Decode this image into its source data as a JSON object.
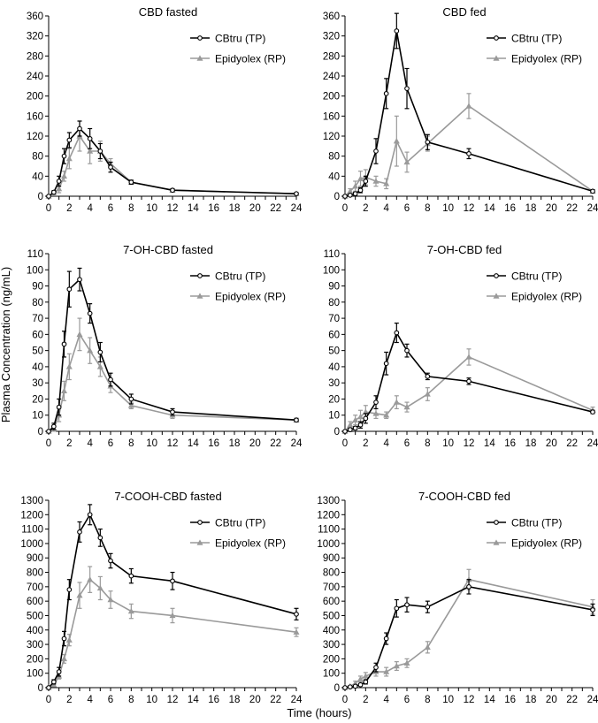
{
  "figure": {
    "ylabel": "Plasma Concentration (ng/mL)",
    "xlabel": "Time (hours)"
  },
  "colors": {
    "tp": "#000000",
    "rp": "#9a9a9a"
  },
  "chart_data": [
    {
      "type": "line",
      "title": "CBD fasted",
      "xlim": [
        0,
        24
      ],
      "ylim": [
        0,
        360
      ],
      "xticks": [
        0,
        1,
        2,
        3,
        4,
        5,
        6,
        7,
        8,
        9,
        10,
        11,
        12,
        13,
        14,
        15,
        16,
        17,
        18,
        19,
        20,
        21,
        22,
        23,
        24
      ],
      "yticks": [
        0,
        40,
        80,
        120,
        160,
        200,
        240,
        280,
        320,
        360
      ],
      "legend_position": "top-right",
      "series": [
        {
          "name": "CBtru (TP)",
          "color": "#000000",
          "marker": "circle",
          "x": [
            0,
            0.5,
            1,
            1.5,
            2,
            3,
            4,
            5,
            6,
            8,
            12,
            24
          ],
          "y": [
            0,
            8,
            30,
            80,
            112,
            135,
            115,
            90,
            58,
            28,
            12,
            5
          ],
          "err": [
            0,
            3,
            10,
            15,
            15,
            15,
            20,
            15,
            10,
            4,
            3,
            2
          ]
        },
        {
          "name": "Epidyolex (RP)",
          "color": "#9a9a9a",
          "marker": "triangle",
          "x": [
            0,
            0.5,
            1,
            1.5,
            2,
            3,
            4,
            5,
            6,
            8,
            12,
            24
          ],
          "y": [
            0,
            5,
            15,
            40,
            75,
            120,
            90,
            90,
            65,
            28,
            12,
            5
          ],
          "err": [
            0,
            3,
            8,
            10,
            20,
            30,
            25,
            20,
            10,
            4,
            3,
            2
          ]
        }
      ]
    },
    {
      "type": "line",
      "title": "CBD fed",
      "xlim": [
        0,
        24
      ],
      "ylim": [
        0,
        360
      ],
      "xticks": [
        0,
        1,
        2,
        3,
        4,
        5,
        6,
        7,
        8,
        9,
        10,
        11,
        12,
        13,
        14,
        15,
        16,
        17,
        18,
        19,
        20,
        21,
        22,
        23,
        24
      ],
      "yticks": [
        0,
        40,
        80,
        120,
        160,
        200,
        240,
        280,
        320,
        360
      ],
      "legend_position": "top-right",
      "series": [
        {
          "name": "CBtru (TP)",
          "color": "#000000",
          "marker": "circle",
          "x": [
            0,
            0.5,
            1,
            1.5,
            2,
            3,
            4,
            5,
            6,
            8,
            12,
            24
          ],
          "y": [
            0,
            2,
            5,
            12,
            30,
            90,
            205,
            330,
            215,
            108,
            85,
            10
          ],
          "err": [
            0,
            2,
            3,
            5,
            10,
            25,
            30,
            35,
            40,
            15,
            10,
            3
          ]
        },
        {
          "name": "Epidyolex (RP)",
          "color": "#9a9a9a",
          "marker": "triangle",
          "x": [
            0,
            0.5,
            1,
            1.5,
            2,
            3,
            4,
            5,
            6,
            8,
            12,
            24
          ],
          "y": [
            0,
            10,
            20,
            35,
            38,
            30,
            25,
            110,
            68,
            105,
            180,
            10
          ],
          "err": [
            0,
            5,
            10,
            15,
            15,
            10,
            10,
            50,
            20,
            15,
            25,
            3
          ]
        }
      ]
    },
    {
      "type": "line",
      "title": "7-OH-CBD fasted",
      "xlim": [
        0,
        24
      ],
      "ylim": [
        0,
        110
      ],
      "xticks": [
        0,
        1,
        2,
        3,
        4,
        5,
        6,
        7,
        8,
        9,
        10,
        11,
        12,
        13,
        14,
        15,
        16,
        17,
        18,
        19,
        20,
        21,
        22,
        23,
        24
      ],
      "yticks": [
        0,
        10,
        20,
        30,
        40,
        50,
        60,
        70,
        80,
        90,
        100,
        110
      ],
      "legend_position": "top-right",
      "series": [
        {
          "name": "CBtru (TP)",
          "color": "#000000",
          "marker": "circle",
          "x": [
            0,
            0.5,
            1,
            1.5,
            2,
            3,
            4,
            5,
            6,
            8,
            12,
            24
          ],
          "y": [
            0,
            3,
            15,
            54,
            88,
            94,
            73,
            49,
            32,
            20,
            12,
            7
          ],
          "err": [
            0,
            2,
            5,
            8,
            11,
            7,
            6,
            6,
            4,
            3,
            2,
            1
          ]
        },
        {
          "name": "Epidyolex (RP)",
          "color": "#9a9a9a",
          "marker": "triangle",
          "x": [
            0,
            0.5,
            1,
            1.5,
            2,
            3,
            4,
            5,
            6,
            8,
            12,
            24
          ],
          "y": [
            0,
            2,
            10,
            25,
            40,
            60,
            50,
            40,
            28,
            16,
            10,
            7
          ],
          "err": [
            0,
            2,
            4,
            6,
            8,
            10,
            8,
            6,
            4,
            2,
            2,
            1
          ]
        }
      ]
    },
    {
      "type": "line",
      "title": "7-OH-CBD fed",
      "xlim": [
        0,
        24
      ],
      "ylim": [
        0,
        110
      ],
      "xticks": [
        0,
        1,
        2,
        3,
        4,
        5,
        6,
        7,
        8,
        9,
        10,
        11,
        12,
        13,
        14,
        15,
        16,
        17,
        18,
        19,
        20,
        21,
        22,
        23,
        24
      ],
      "yticks": [
        0,
        10,
        20,
        30,
        40,
        50,
        60,
        70,
        80,
        90,
        100,
        110
      ],
      "legend_position": "top-right",
      "series": [
        {
          "name": "CBtru (TP)",
          "color": "#000000",
          "marker": "circle",
          "x": [
            0,
            0.5,
            1,
            1.5,
            2,
            3,
            4,
            5,
            6,
            8,
            12,
            24
          ],
          "y": [
            0,
            1,
            2,
            4,
            8,
            18,
            42,
            61,
            50,
            34,
            31,
            12
          ],
          "err": [
            0,
            1,
            1,
            2,
            3,
            4,
            7,
            6,
            4,
            2,
            2,
            1
          ]
        },
        {
          "name": "Epidyolex (RP)",
          "color": "#9a9a9a",
          "marker": "triangle",
          "x": [
            0,
            0.5,
            1,
            1.5,
            2,
            3,
            4,
            5,
            6,
            8,
            12,
            24
          ],
          "y": [
            0,
            4,
            7,
            9,
            12,
            11,
            10,
            18,
            15,
            23,
            46,
            13
          ],
          "err": [
            0,
            2,
            3,
            4,
            4,
            3,
            2,
            4,
            3,
            4,
            5,
            2
          ]
        }
      ]
    },
    {
      "type": "line",
      "title": "7-COOH-CBD fasted",
      "xlim": [
        0,
        24
      ],
      "ylim": [
        0,
        1300
      ],
      "xticks": [
        0,
        1,
        2,
        3,
        4,
        5,
        6,
        7,
        8,
        9,
        10,
        11,
        12,
        13,
        14,
        15,
        16,
        17,
        18,
        19,
        20,
        21,
        22,
        23,
        24
      ],
      "yticks": [
        0,
        100,
        200,
        300,
        400,
        500,
        600,
        700,
        800,
        900,
        1000,
        1100,
        1200,
        1300
      ],
      "legend_position": "top-right",
      "series": [
        {
          "name": "CBtru (TP)",
          "color": "#000000",
          "marker": "circle",
          "x": [
            0,
            0.5,
            1,
            1.5,
            2,
            3,
            4,
            5,
            6,
            8,
            12,
            24
          ],
          "y": [
            0,
            40,
            110,
            340,
            680,
            1080,
            1200,
            1040,
            880,
            775,
            740,
            510
          ],
          "err": [
            0,
            15,
            30,
            50,
            70,
            70,
            70,
            60,
            50,
            50,
            60,
            40
          ]
        },
        {
          "name": "Epidyolex (RP)",
          "color": "#9a9a9a",
          "marker": "triangle",
          "x": [
            0,
            0.5,
            1,
            1.5,
            2,
            3,
            4,
            5,
            6,
            8,
            12,
            24
          ],
          "y": [
            0,
            20,
            80,
            200,
            330,
            640,
            750,
            690,
            610,
            530,
            500,
            385
          ],
          "err": [
            0,
            10,
            20,
            30,
            40,
            90,
            90,
            80,
            60,
            50,
            50,
            30
          ]
        }
      ]
    },
    {
      "type": "line",
      "title": "7-COOH-CBD fed",
      "xlim": [
        0,
        24
      ],
      "ylim": [
        0,
        1300
      ],
      "xticks": [
        0,
        1,
        2,
        3,
        4,
        5,
        6,
        7,
        8,
        9,
        10,
        11,
        12,
        13,
        14,
        15,
        16,
        17,
        18,
        19,
        20,
        21,
        22,
        23,
        24
      ],
      "yticks": [
        0,
        100,
        200,
        300,
        400,
        500,
        600,
        700,
        800,
        900,
        1000,
        1100,
        1200,
        1300
      ],
      "legend_position": "top-right",
      "series": [
        {
          "name": "CBtru (TP)",
          "color": "#000000",
          "marker": "circle",
          "x": [
            0,
            0.5,
            1,
            1.5,
            2,
            3,
            4,
            5,
            6,
            8,
            12,
            24
          ],
          "y": [
            0,
            5,
            10,
            20,
            40,
            140,
            340,
            550,
            575,
            560,
            700,
            540
          ],
          "err": [
            0,
            5,
            5,
            8,
            15,
            30,
            40,
            60,
            50,
            40,
            50,
            40
          ]
        },
        {
          "name": "Epidyolex (RP)",
          "color": "#9a9a9a",
          "marker": "triangle",
          "x": [
            0,
            0.5,
            1,
            1.5,
            2,
            3,
            4,
            5,
            6,
            8,
            12,
            24
          ],
          "y": [
            0,
            10,
            30,
            60,
            80,
            110,
            110,
            150,
            170,
            280,
            750,
            560
          ],
          "err": [
            0,
            5,
            15,
            20,
            25,
            30,
            30,
            30,
            30,
            40,
            70,
            50
          ]
        }
      ]
    }
  ]
}
